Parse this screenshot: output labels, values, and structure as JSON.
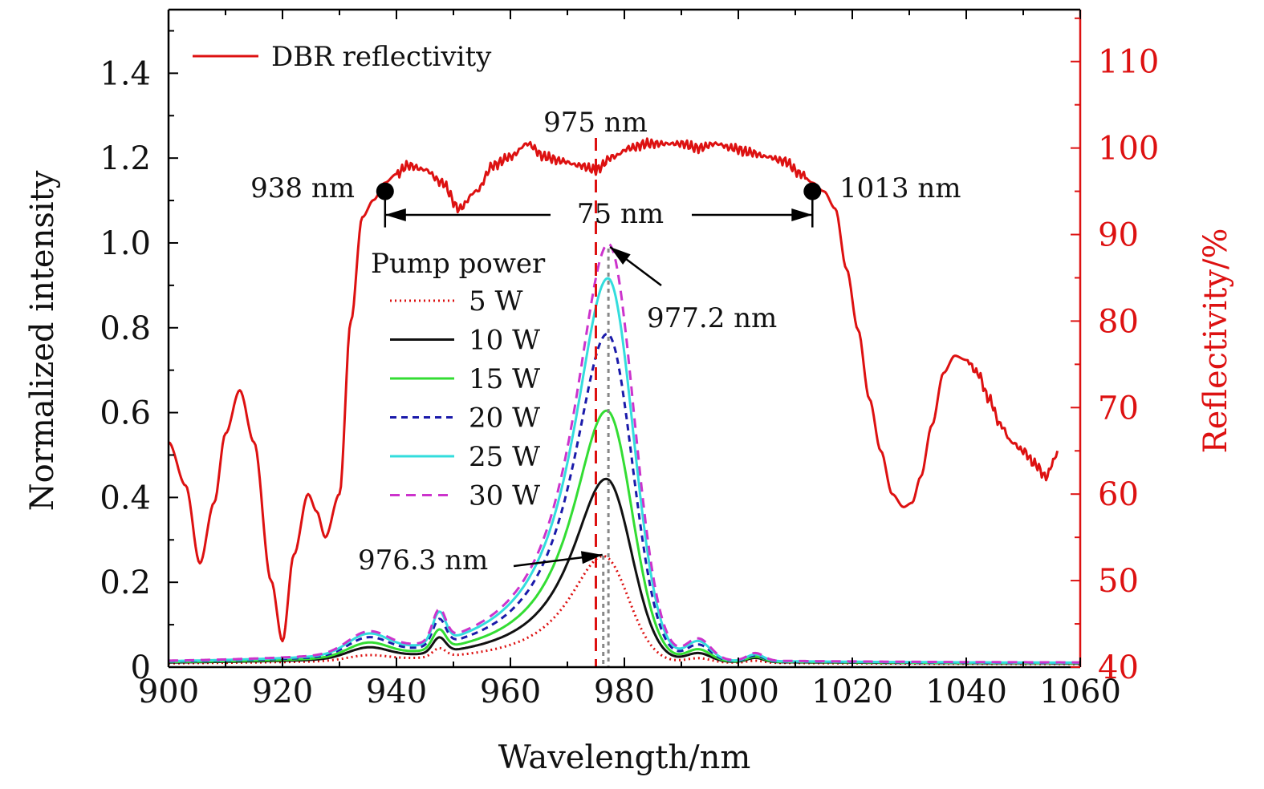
{
  "chart_data": {
    "type": "line",
    "xlabel": "Wavelength/nm",
    "ylabel_left": "Normalized intensity",
    "ylabel_right": "Reflectivity/%",
    "xlim": [
      900,
      1060
    ],
    "ylim_left": [
      0,
      1.55
    ],
    "ylim_right": [
      40,
      116
    ],
    "xticks": [
      900,
      920,
      940,
      960,
      980,
      1000,
      1020,
      1040,
      1060
    ],
    "xtick_labels": [
      "900",
      "920",
      "940",
      "960",
      "980",
      "1000",
      "1020",
      "1040",
      "1060"
    ],
    "yticks_left": [
      0,
      0.2,
      0.4,
      0.6,
      0.8,
      1.0,
      1.2,
      1.4
    ],
    "ytick_labels_left": [
      "0",
      "0.2",
      "0.4",
      "0.6",
      "0.8",
      "1.0",
      "1.2",
      "1.4"
    ],
    "yticks_right": [
      40,
      50,
      60,
      70,
      80,
      90,
      100,
      110
    ],
    "ytick_labels_right": [
      "40",
      "50",
      "60",
      "70",
      "80",
      "90",
      "100",
      "110"
    ],
    "reflectivity": {
      "name": "DBR reflectivity",
      "color": "#dd1111",
      "x": [
        900,
        903,
        905.5,
        908,
        910,
        912.5,
        915,
        918,
        920,
        922,
        924.5,
        926,
        927.5,
        930,
        932,
        934,
        936,
        938,
        940,
        942,
        945,
        948,
        951,
        954,
        957,
        960,
        963,
        966,
        969,
        972,
        975,
        978,
        981,
        984,
        987,
        990,
        993,
        996,
        999,
        1002,
        1005,
        1008,
        1011,
        1013,
        1015,
        1017,
        1019,
        1021,
        1023,
        1025,
        1027,
        1029,
        1030.5,
        1032,
        1034,
        1036,
        1038,
        1040,
        1042,
        1044,
        1046,
        1048,
        1050,
        1052,
        1054,
        1055.5,
        1056
      ],
      "y": [
        66,
        61,
        52,
        59,
        67,
        72,
        66,
        50,
        43,
        53,
        60,
        58,
        55,
        60,
        80,
        92,
        94,
        96,
        97,
        98,
        97.5,
        96,
        93,
        95,
        98,
        99,
        100.5,
        99,
        98.5,
        98,
        97.5,
        99,
        100,
        100.5,
        100.5,
        100.5,
        100,
        100.5,
        100,
        99.5,
        99,
        98.5,
        97,
        96,
        95,
        93,
        86,
        79,
        71,
        65,
        60,
        58.5,
        59,
        62,
        68,
        74,
        76,
        75.5,
        74,
        71,
        68,
        66,
        65,
        63.5,
        62,
        64,
        65
      ]
    },
    "pump_legend_title": "Pump power",
    "series": [
      {
        "name": "5 W",
        "color": "#dd1111",
        "dash": "2,4",
        "peak": 976.3,
        "amp": 0.25,
        "base": 0.012,
        "side": [
          0.012,
          0.02,
          0.01,
          0.005
        ]
      },
      {
        "name": "10 W",
        "color": "#111111",
        "dash": "",
        "peak": 976.8,
        "amp": 0.43,
        "base": 0.014,
        "side": [
          0.025,
          0.035,
          0.02,
          0.01
        ]
      },
      {
        "name": "15 W",
        "color": "#33dd33",
        "dash": "",
        "peak": 976.9,
        "amp": 0.59,
        "base": 0.015,
        "side": [
          0.032,
          0.045,
          0.028,
          0.012
        ]
      },
      {
        "name": "20 W",
        "color": "#1a1aaa",
        "dash": "8,6",
        "peak": 977.0,
        "amp": 0.77,
        "base": 0.016,
        "side": [
          0.04,
          0.06,
          0.038,
          0.014
        ]
      },
      {
        "name": "25 W",
        "color": "#33dddd",
        "dash": "",
        "peak": 977.1,
        "amp": 0.9,
        "base": 0.017,
        "side": [
          0.045,
          0.07,
          0.045,
          0.016
        ]
      },
      {
        "name": "30 W",
        "color": "#cc33cc",
        "dash": "12,8",
        "peak": 977.2,
        "amp": 0.98,
        "base": 0.018,
        "side": [
          0.048,
          0.072,
          0.05,
          0.018
        ]
      }
    ],
    "annotations": {
      "center_label": "975 nm",
      "center_x": 975,
      "left_edge_label": "938 nm",
      "left_edge_x": 938,
      "right_edge_label": "1013 nm",
      "right_edge_x": 1013,
      "edge_reflectivity": 95,
      "width_label": "75 nm",
      "peak_high_label": "977.2 nm",
      "peak_high_x": 977.2,
      "peak_low_label": "976.3 nm",
      "peak_low_x": 976.3
    }
  }
}
